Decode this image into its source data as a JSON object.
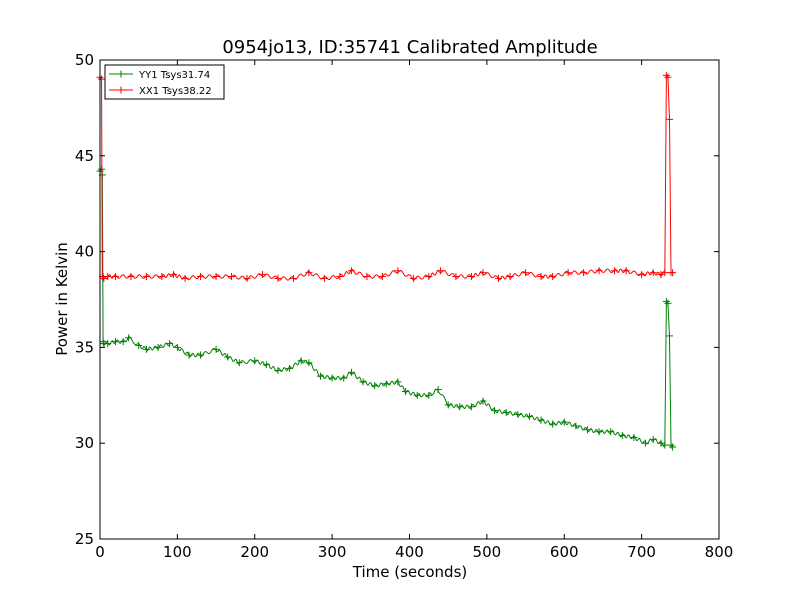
{
  "chart_data": {
    "type": "line",
    "title": "0954jo13, ID:35741 Calibrated Amplitude",
    "xlabel": "Time (seconds)",
    "ylabel": "Power in Kelvin",
    "xlim": [
      0,
      800
    ],
    "ylim": [
      25,
      50
    ],
    "xticks": [
      "0",
      "100",
      "200",
      "300",
      "400",
      "500",
      "600",
      "700",
      "800"
    ],
    "yticks": [
      "25",
      "30",
      "35",
      "40",
      "45",
      "50"
    ],
    "grid": false,
    "legend_position": "top-left",
    "series": [
      {
        "name": "YY1 Tsys31.74",
        "color": "#008000",
        "x": [
          0,
          2,
          3,
          4,
          5,
          10,
          20,
          30,
          37,
          50,
          60,
          75,
          90,
          100,
          115,
          130,
          150,
          165,
          180,
          200,
          215,
          230,
          245,
          260,
          270,
          285,
          300,
          315,
          325,
          340,
          355,
          370,
          385,
          395,
          410,
          425,
          437,
          450,
          465,
          480,
          495,
          510,
          525,
          540,
          555,
          570,
          585,
          600,
          615,
          630,
          645,
          660,
          675,
          690,
          705,
          715,
          725,
          730,
          732,
          734,
          736,
          738,
          740
        ],
        "y": [
          44.2,
          44.3,
          44.0,
          35.3,
          35.2,
          35.2,
          35.3,
          35.3,
          35.5,
          35.1,
          34.9,
          35.0,
          35.2,
          35.0,
          34.6,
          34.6,
          34.9,
          34.5,
          34.2,
          34.3,
          34.1,
          33.8,
          33.9,
          34.3,
          34.2,
          33.5,
          33.4,
          33.4,
          33.7,
          33.2,
          33.0,
          33.1,
          33.2,
          32.7,
          32.5,
          32.5,
          32.8,
          32.0,
          31.9,
          31.9,
          32.2,
          31.7,
          31.6,
          31.5,
          31.4,
          31.2,
          31.0,
          31.1,
          30.9,
          30.7,
          30.6,
          30.6,
          30.4,
          30.3,
          30.0,
          30.2,
          30.0,
          29.9,
          37.4,
          37.3,
          35.6,
          29.9,
          29.8
        ]
      },
      {
        "name": "XX1 Tsys38.22",
        "color": "#ff0000",
        "x": [
          0,
          2,
          3,
          4,
          5,
          10,
          20,
          40,
          60,
          80,
          95,
          110,
          130,
          150,
          170,
          190,
          210,
          230,
          250,
          270,
          290,
          310,
          325,
          345,
          365,
          385,
          405,
          425,
          440,
          460,
          480,
          495,
          515,
          530,
          550,
          570,
          585,
          605,
          625,
          645,
          665,
          680,
          700,
          715,
          725,
          730,
          732,
          734,
          736,
          738,
          740
        ],
        "y": [
          49.1,
          49.0,
          38.7,
          38.7,
          38.6,
          38.7,
          38.7,
          38.7,
          38.7,
          38.7,
          38.8,
          38.6,
          38.7,
          38.7,
          38.7,
          38.6,
          38.8,
          38.6,
          38.6,
          38.9,
          38.6,
          38.7,
          39.0,
          38.7,
          38.7,
          39.0,
          38.6,
          38.7,
          39.0,
          38.7,
          38.7,
          38.9,
          38.6,
          38.7,
          38.9,
          38.7,
          38.7,
          38.9,
          38.9,
          39.0,
          39.0,
          39.0,
          38.8,
          38.9,
          38.8,
          38.9,
          49.2,
          49.1,
          46.9,
          38.9,
          38.9
        ]
      }
    ]
  }
}
